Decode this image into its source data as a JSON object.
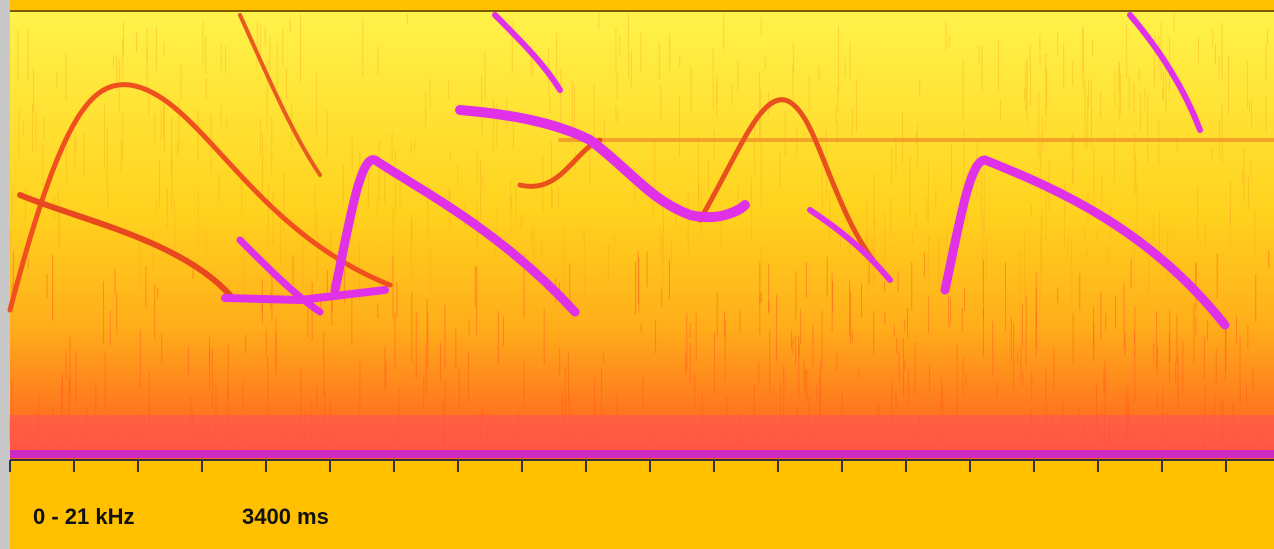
{
  "frequency_range": "0 - 21 kHz",
  "duration": "3400 ms"
}
